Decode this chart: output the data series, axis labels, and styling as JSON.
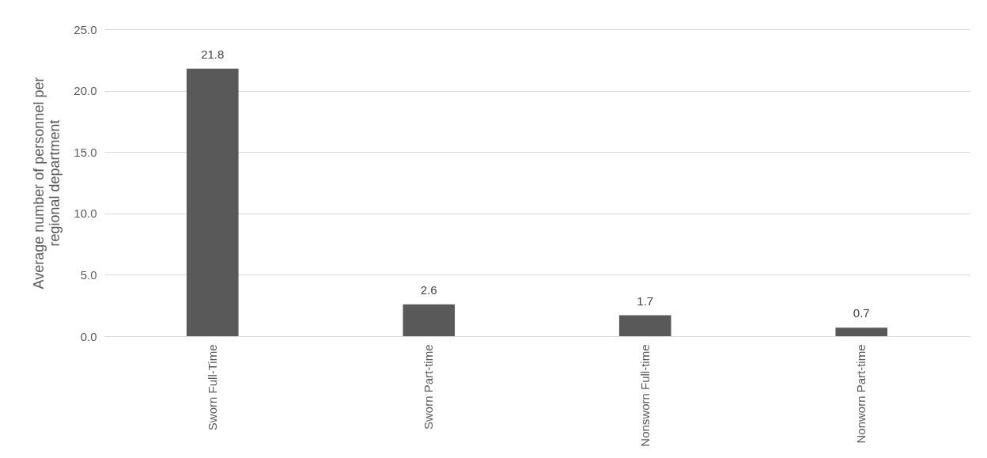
{
  "chart_data": {
    "type": "bar",
    "ylabel": "Average number of personnel per\nregional department",
    "categories": [
      "Sworn Full-Time",
      "Sworn Part-time",
      "Nonsworn Full-time",
      "Nonworn Part-time"
    ],
    "values": [
      21.8,
      2.6,
      1.7,
      0.7
    ],
    "color": "#595959",
    "ylim": [
      0,
      25
    ],
    "yticks": [
      {
        "value": 0,
        "label": "0.0"
      },
      {
        "value": 5,
        "label": "5.0"
      },
      {
        "value": 10,
        "label": "10.0"
      },
      {
        "value": 15,
        "label": "15.0"
      },
      {
        "value": 20,
        "label": "20.0"
      },
      {
        "value": 25,
        "label": "25.0"
      }
    ],
    "grid": "y",
    "data_labels": true
  }
}
